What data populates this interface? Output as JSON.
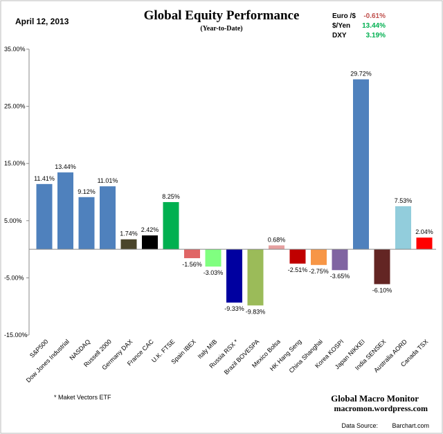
{
  "date": "April 12, 2013",
  "fx": [
    {
      "label": "Euro /$",
      "value": "-0.61%",
      "color": "#c0504d"
    },
    {
      "label": "$/Yen",
      "value": "13.44%",
      "color": "#00b050"
    },
    {
      "label": "DXY",
      "value": "3.19%",
      "color": "#00b050"
    }
  ],
  "footnote": "* Maket Vectors ETF",
  "brand": {
    "name": "Global Macro Monitor",
    "url": "macromon.wordpress.com"
  },
  "source": {
    "label": "Data Source:",
    "value": "Barchart.com"
  },
  "chart_data": {
    "type": "bar",
    "title": "Global Equity Performance",
    "subtitle": "(Year-to-Date)",
    "ylim": [
      -15,
      35
    ],
    "yticks": [
      "35.00%",
      "25.00%",
      "15.00%",
      "5.00%",
      "-5.00%",
      "-15.00%"
    ],
    "ytick_values": [
      35,
      25,
      15,
      5,
      -5,
      -15
    ],
    "grid": false,
    "categories": [
      "S&P500",
      "Dow Jones Industrial",
      "NASDAQ",
      "Russell 2000",
      "Germany DAX",
      "France CAC",
      "U.K. FTSE",
      "Spain IBEX",
      "Italy  MIB",
      "Russia RSX *",
      "Brazil BOVESPA",
      "Mexico Bolsa",
      "HK Hang Seng",
      "China Shanghai",
      "Korea KOSPI",
      "Japan NIKKEI",
      "India SENSEX",
      "Australia AORD",
      "Canada TSX"
    ],
    "values": [
      11.41,
      13.44,
      9.12,
      11.01,
      1.74,
      2.42,
      8.25,
      -1.56,
      -3.03,
      -9.33,
      -9.83,
      0.68,
      -2.51,
      -2.75,
      -3.65,
      29.72,
      -6.1,
      7.53,
      2.04
    ],
    "labels": [
      "11.41%",
      "13.44%",
      "9.12%",
      "11.01%",
      "1.74%",
      "2.42%",
      "8.25%",
      "-1.56%",
      "-3.03%",
      "-9.33%",
      "-9.83%",
      "0.68%",
      "-2.51%",
      "-2.75%",
      "-3.65%",
      "29.72%",
      "-6.10%",
      "7.53%",
      "2.04%"
    ],
    "colors": [
      "#4f81bd",
      "#4f81bd",
      "#4f81bd",
      "#4f81bd",
      "#4a452a",
      "#000000",
      "#00b050",
      "#e06666",
      "#80ff80",
      "#0000a0",
      "#9bbb59",
      "#e6a0a0",
      "#c00000",
      "#f79646",
      "#8064a2",
      "#4f81bd",
      "#632523",
      "#92cddc",
      "#ff0000"
    ]
  }
}
